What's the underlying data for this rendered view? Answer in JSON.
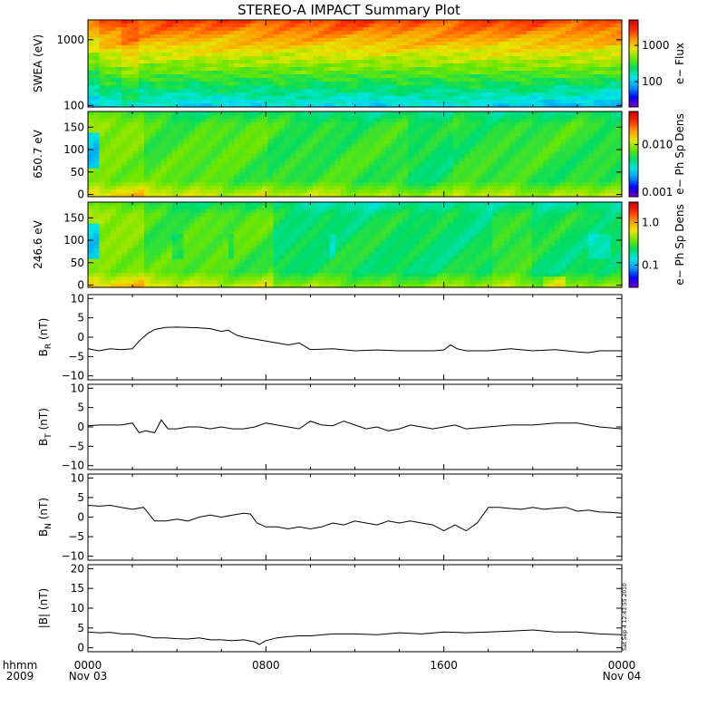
{
  "title": "STEREO-A IMPACT Summary Plot",
  "stamp": "Sat Sep  4 12:43:55 2010",
  "time_axis": {
    "unit_label": "hhmm",
    "year_label": "2009",
    "ticks": [
      {
        "t": 0,
        "label": "0000",
        "date": "Nov 03"
      },
      {
        "t": 8,
        "label": "0800",
        "date": ""
      },
      {
        "t": 16,
        "label": "1600",
        "date": ""
      },
      {
        "t": 24,
        "label": "0000",
        "date": "Nov 04"
      }
    ],
    "range_hours": [
      0,
      24
    ]
  },
  "colors": {
    "colormap": [
      "#7a00c8",
      "#0000ff",
      "#0096ff",
      "#00e6e6",
      "#00dc64",
      "#6ee600",
      "#e6e600",
      "#ff9600",
      "#ff2800",
      "#d20000"
    ],
    "line": "#000000"
  },
  "chart_data": [
    {
      "type": "heatmap",
      "name": "SWEA",
      "ylabel": "SWEA (eV)",
      "yscale": "log",
      "ylim": [
        95,
        2000
      ],
      "yticks": [
        {
          "v": 100,
          "label": "100"
        },
        {
          "v": 1000,
          "label": "1000"
        }
      ],
      "colorbar": {
        "label": "e− Flux",
        "scale": "log",
        "range": [
          20,
          5000
        ],
        "ticks": [
          {
            "v": 100,
            "label": "100"
          },
          {
            "v": 1000,
            "label": "1000"
          }
        ]
      }
    },
    {
      "type": "heatmap",
      "name": "pad-650",
      "ylabel": "650.7 eV",
      "ylim": [
        -5,
        185
      ],
      "yticks": [
        {
          "v": 0,
          "label": "0"
        },
        {
          "v": 50,
          "label": "50"
        },
        {
          "v": 100,
          "label": "100"
        },
        {
          "v": 150,
          "label": "150"
        }
      ],
      "colorbar": {
        "label": "e− Ph Sp Dens",
        "scale": "log",
        "range": [
          0.0008,
          0.05
        ],
        "ticks": [
          {
            "v": 0.001,
            "label": "0.001"
          },
          {
            "v": 0.01,
            "label": "0.010"
          }
        ]
      }
    },
    {
      "type": "heatmap",
      "name": "pad-246",
      "ylabel": "246.6 eV",
      "ylim": [
        -5,
        185
      ],
      "yticks": [
        {
          "v": 0,
          "label": "0"
        },
        {
          "v": 50,
          "label": "50"
        },
        {
          "v": 100,
          "label": "100"
        },
        {
          "v": 150,
          "label": "150"
        }
      ],
      "colorbar": {
        "label": "e− Ph Sp Dens",
        "scale": "log",
        "range": [
          0.03,
          3
        ],
        "ticks": [
          {
            "v": 0.1,
            "label": "0.1"
          },
          {
            "v": 1.0,
            "label": "1.0"
          }
        ]
      }
    },
    {
      "type": "line",
      "name": "BR",
      "ylabel_main": "B",
      "ylabel_sub": "R",
      "ylabel_unit": "(nT)",
      "ylim": [
        -11,
        11
      ],
      "yticks": [
        {
          "v": -10,
          "label": "−10"
        },
        {
          "v": -5,
          "label": "−5"
        },
        {
          "v": 0,
          "label": "0"
        },
        {
          "v": 5,
          "label": "5"
        },
        {
          "v": 10,
          "label": "10"
        }
      ],
      "x": [
        0,
        0.5,
        1,
        1.5,
        2,
        2.3,
        2.7,
        3,
        3.5,
        4,
        4.5,
        5,
        5.5,
        6,
        6.3,
        6.7,
        7,
        7.5,
        8,
        8.5,
        9,
        9.5,
        10,
        11,
        12,
        13,
        14,
        15,
        15.5,
        16,
        16.3,
        16.6,
        17,
        18,
        19,
        20,
        21,
        22,
        22.5,
        23,
        24
      ],
      "values": [
        -3,
        -3.5,
        -3,
        -3.2,
        -3,
        -1,
        1,
        2,
        2.5,
        2.6,
        2.5,
        2.4,
        2.2,
        1.5,
        1.8,
        0.5,
        0,
        -0.5,
        -1,
        -1.5,
        -2,
        -1.5,
        -3.2,
        -3,
        -3.5,
        -3.3,
        -3.5,
        -3.5,
        -3.5,
        -3.3,
        -2,
        -3,
        -3.5,
        -3.5,
        -3,
        -3.5,
        -3.2,
        -3.8,
        -4,
        -3.5,
        -3.5
      ]
    },
    {
      "type": "line",
      "name": "BT",
      "ylabel_main": "B",
      "ylabel_sub": "T",
      "ylabel_unit": "(nT)",
      "ylim": [
        -11,
        11
      ],
      "yticks": [
        {
          "v": -10,
          "label": "−10"
        },
        {
          "v": -5,
          "label": "−5"
        },
        {
          "v": 0,
          "label": "0"
        },
        {
          "v": 5,
          "label": "5"
        },
        {
          "v": 10,
          "label": "10"
        }
      ],
      "x": [
        0,
        0.5,
        1,
        1.5,
        2,
        2.3,
        2.6,
        3,
        3.3,
        3.6,
        4,
        4.5,
        5,
        5.5,
        6,
        6.5,
        7,
        7.5,
        8,
        8.5,
        9,
        9.5,
        10,
        10.5,
        11,
        11.5,
        12,
        12.5,
        13,
        13.5,
        14,
        14.5,
        15,
        15.5,
        16,
        16.5,
        17,
        18,
        19,
        20,
        21,
        22,
        23,
        24
      ],
      "values": [
        0.3,
        0.5,
        0.5,
        0.5,
        1,
        -1.5,
        -1,
        -1.5,
        1.8,
        -0.5,
        -0.5,
        0,
        0,
        -0.5,
        0,
        -0.5,
        -0.5,
        0,
        1,
        0.5,
        0,
        -0.5,
        1.5,
        0.5,
        0.3,
        1.5,
        0.5,
        -0.5,
        0,
        -1,
        -0.5,
        0.5,
        0,
        -0.5,
        0,
        0.5,
        -0.5,
        0,
        0.5,
        0.5,
        1,
        1,
        0,
        -0.5
      ]
    },
    {
      "type": "line",
      "name": "BN",
      "ylabel_main": "B",
      "ylabel_sub": "N",
      "ylabel_unit": "(nT)",
      "ylim": [
        -11,
        11
      ],
      "yticks": [
        {
          "v": -10,
          "label": "−10"
        },
        {
          "v": -5,
          "label": "−5"
        },
        {
          "v": 0,
          "label": "0"
        },
        {
          "v": 5,
          "label": "5"
        },
        {
          "v": 10,
          "label": "10"
        }
      ],
      "x": [
        0,
        0.5,
        1,
        1.5,
        2,
        2.5,
        3,
        3.5,
        4,
        4.5,
        5,
        5.5,
        6,
        6.5,
        7,
        7.3,
        7.6,
        8,
        8.5,
        9,
        9.5,
        10,
        10.5,
        11,
        11.5,
        12,
        12.5,
        13,
        13.5,
        14,
        14.5,
        15,
        15.5,
        16,
        16.5,
        17,
        17.5,
        18,
        18.5,
        19,
        19.5,
        20,
        20.5,
        21,
        21.5,
        22,
        22.5,
        23,
        23.5,
        24
      ],
      "values": [
        3,
        2.8,
        3,
        2.5,
        2,
        2.5,
        -1,
        -1,
        -0.5,
        -1,
        0,
        0.5,
        0,
        0.5,
        1,
        0.8,
        -1.5,
        -2.5,
        -2.5,
        -3,
        -2.5,
        -3,
        -2.5,
        -1.5,
        -2,
        -1,
        -1.5,
        -2,
        -1,
        -1.5,
        -1,
        -1.5,
        -2,
        -3.5,
        -2,
        -3.5,
        -1.5,
        2.5,
        2.5,
        2.2,
        2,
        2.5,
        2,
        2.3,
        2.5,
        1.5,
        1.8,
        1.3,
        1.2,
        1
      ]
    },
    {
      "type": "line",
      "name": "Bmag",
      "ylabel_main": "|B|",
      "ylabel_sub": "",
      "ylabel_unit": "(nT)",
      "ylim": [
        -1,
        21
      ],
      "yticks": [
        {
          "v": 0,
          "label": "0"
        },
        {
          "v": 5,
          "label": "5"
        },
        {
          "v": 10,
          "label": "10"
        },
        {
          "v": 15,
          "label": "15"
        },
        {
          "v": 20,
          "label": "20"
        }
      ],
      "x": [
        0,
        0.5,
        1,
        1.5,
        2,
        2.5,
        3,
        3.5,
        4,
        4.5,
        5,
        5.5,
        6,
        6.5,
        7,
        7.5,
        7.7,
        8,
        8.5,
        9,
        9.5,
        10,
        11,
        12,
        13,
        14,
        15,
        16,
        17,
        18,
        19,
        20,
        21,
        22,
        23,
        24
      ],
      "values": [
        4,
        3.8,
        3.9,
        3.5,
        3.5,
        3,
        2.5,
        2.5,
        2.3,
        2.2,
        2.5,
        2,
        2,
        1.8,
        2,
        1.5,
        0.8,
        1.8,
        2.5,
        2.8,
        3,
        3,
        3.5,
        3.5,
        3.3,
        3.8,
        3.5,
        4,
        3.8,
        4,
        4.2,
        4.5,
        4,
        4,
        3.5,
        3.3
      ]
    }
  ]
}
